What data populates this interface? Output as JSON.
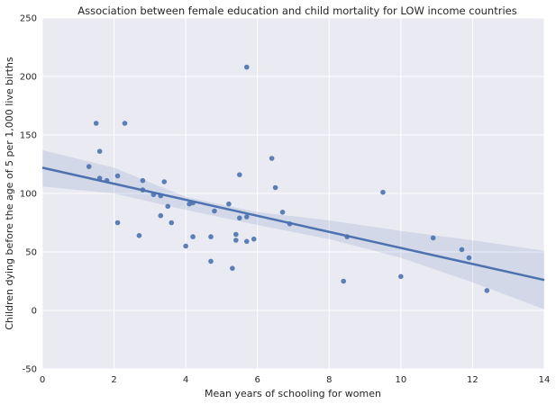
{
  "chart_data": {
    "type": "scatter",
    "title": "Association between female education and child mortality for LOW income countries",
    "xlabel": "Mean years of schooling for women",
    "ylabel": "Children dying before the age of 5 per 1,000 live births",
    "xlim": [
      0,
      14
    ],
    "ylim": [
      -50,
      250
    ],
    "xticks": [
      0,
      2,
      4,
      6,
      8,
      10,
      12,
      14
    ],
    "yticks": [
      -50,
      0,
      50,
      100,
      150,
      200,
      250
    ],
    "grid": true,
    "colors": {
      "background": "#eaeaf2",
      "grid": "#ffffff",
      "points": "#4c72b0",
      "line": "#4c72b0",
      "band": "#4c72b0"
    },
    "points": [
      {
        "x": 1.3,
        "y": 123
      },
      {
        "x": 1.5,
        "y": 160
      },
      {
        "x": 1.6,
        "y": 136
      },
      {
        "x": 1.6,
        "y": 113
      },
      {
        "x": 1.8,
        "y": 111
      },
      {
        "x": 2.1,
        "y": 115
      },
      {
        "x": 2.1,
        "y": 75
      },
      {
        "x": 2.3,
        "y": 160
      },
      {
        "x": 2.7,
        "y": 64
      },
      {
        "x": 2.8,
        "y": 111
      },
      {
        "x": 2.8,
        "y": 103
      },
      {
        "x": 3.1,
        "y": 99
      },
      {
        "x": 3.3,
        "y": 98
      },
      {
        "x": 3.3,
        "y": 81
      },
      {
        "x": 3.4,
        "y": 110
      },
      {
        "x": 3.5,
        "y": 89
      },
      {
        "x": 3.6,
        "y": 75
      },
      {
        "x": 4.0,
        "y": 55
      },
      {
        "x": 4.1,
        "y": 91
      },
      {
        "x": 4.2,
        "y": 92
      },
      {
        "x": 4.2,
        "y": 63
      },
      {
        "x": 4.7,
        "y": 63
      },
      {
        "x": 4.7,
        "y": 42
      },
      {
        "x": 4.8,
        "y": 85
      },
      {
        "x": 5.2,
        "y": 91
      },
      {
        "x": 5.3,
        "y": 36
      },
      {
        "x": 5.4,
        "y": 65
      },
      {
        "x": 5.4,
        "y": 60
      },
      {
        "x": 5.5,
        "y": 116
      },
      {
        "x": 5.5,
        "y": 79
      },
      {
        "x": 5.7,
        "y": 208
      },
      {
        "x": 5.7,
        "y": 80
      },
      {
        "x": 5.7,
        "y": 59
      },
      {
        "x": 5.9,
        "y": 61
      },
      {
        "x": 6.4,
        "y": 130
      },
      {
        "x": 6.5,
        "y": 105
      },
      {
        "x": 6.7,
        "y": 84
      },
      {
        "x": 6.9,
        "y": 74
      },
      {
        "x": 8.4,
        "y": 25
      },
      {
        "x": 8.5,
        "y": 63
      },
      {
        "x": 9.5,
        "y": 101
      },
      {
        "x": 10.0,
        "y": 29
      },
      {
        "x": 10.9,
        "y": 62
      },
      {
        "x": 11.7,
        "y": 52
      },
      {
        "x": 11.9,
        "y": 45
      },
      {
        "x": 12.4,
        "y": 17
      }
    ],
    "regression": {
      "x": [
        0,
        14
      ],
      "y": [
        122,
        26
      ]
    },
    "confidence_band": {
      "x": [
        0,
        2,
        4,
        6,
        8,
        10,
        12,
        14
      ],
      "lower": [
        106,
        100,
        86,
        73,
        61,
        45,
        24,
        1
      ],
      "upper": [
        137,
        122,
        97,
        84,
        77,
        68,
        60,
        51
      ]
    }
  }
}
